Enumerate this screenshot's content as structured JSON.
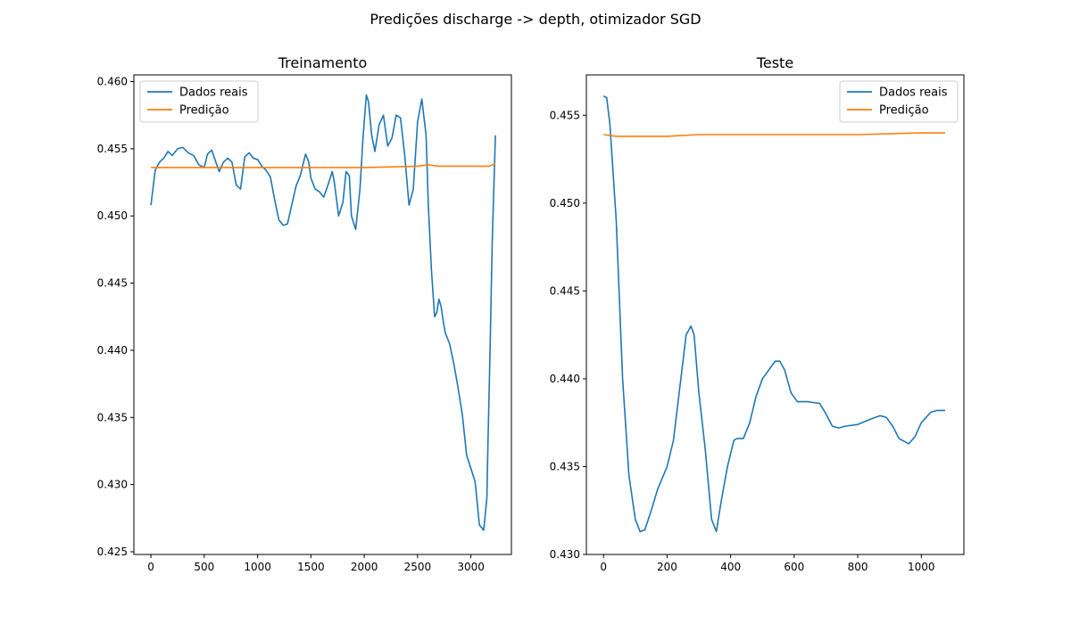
{
  "suptitle": "Predições discharge -> depth, otimizador SGD",
  "colors": {
    "real": "#1f77b4",
    "pred": "#ff7f0e"
  },
  "chart_data": [
    {
      "type": "line",
      "title": "Treinamento",
      "xlabel": "",
      "ylabel": "",
      "xlim": [
        -160,
        3380
      ],
      "ylim": [
        0.4248,
        0.4605
      ],
      "xticks": [
        0,
        500,
        1000,
        1500,
        2000,
        2500,
        3000
      ],
      "yticks": [
        0.425,
        0.43,
        0.435,
        0.44,
        0.445,
        0.45,
        0.455,
        0.46
      ],
      "legend": {
        "position": "top-left",
        "entries": [
          "Dados reais",
          "Predição"
        ]
      },
      "grid": false,
      "series": [
        {
          "name": "Dados reais",
          "x": [
            0,
            40,
            80,
            120,
            160,
            200,
            250,
            300,
            350,
            400,
            450,
            500,
            530,
            570,
            600,
            640,
            680,
            720,
            760,
            800,
            840,
            880,
            920,
            960,
            1000,
            1040,
            1080,
            1120,
            1160,
            1200,
            1240,
            1280,
            1320,
            1360,
            1400,
            1450,
            1480,
            1500,
            1540,
            1580,
            1620,
            1660,
            1700,
            1720,
            1760,
            1800,
            1830,
            1860,
            1880,
            1920,
            1960,
            1990,
            2020,
            2040,
            2070,
            2100,
            2140,
            2180,
            2220,
            2260,
            2300,
            2340,
            2380,
            2420,
            2460,
            2500,
            2540,
            2580,
            2600,
            2630,
            2660,
            2680,
            2700,
            2720,
            2740,
            2760,
            2800,
            2840,
            2880,
            2920,
            2960,
            3000,
            3040,
            3080,
            3120,
            3150,
            3160,
            3180,
            3200,
            3230
          ],
          "y": [
            0.4508,
            0.4534,
            0.454,
            0.4543,
            0.4548,
            0.4545,
            0.455,
            0.4551,
            0.4547,
            0.4545,
            0.4538,
            0.4536,
            0.4546,
            0.4549,
            0.4542,
            0.4533,
            0.454,
            0.4543,
            0.454,
            0.4523,
            0.452,
            0.4544,
            0.4547,
            0.4543,
            0.4542,
            0.4537,
            0.4534,
            0.4529,
            0.4512,
            0.4497,
            0.4493,
            0.4494,
            0.4508,
            0.4522,
            0.453,
            0.4546,
            0.454,
            0.4528,
            0.452,
            0.4518,
            0.4514,
            0.4523,
            0.4533,
            0.4525,
            0.45,
            0.451,
            0.4533,
            0.453,
            0.45,
            0.449,
            0.452,
            0.456,
            0.459,
            0.4585,
            0.456,
            0.4548,
            0.4568,
            0.4575,
            0.4552,
            0.4558,
            0.4575,
            0.4573,
            0.4545,
            0.4508,
            0.452,
            0.457,
            0.4587,
            0.456,
            0.451,
            0.446,
            0.4425,
            0.4428,
            0.4438,
            0.4433,
            0.4422,
            0.4413,
            0.4405,
            0.439,
            0.4372,
            0.4352,
            0.4322,
            0.4312,
            0.4302,
            0.427,
            0.4266,
            0.429,
            0.433,
            0.44,
            0.448,
            0.456
          ]
        },
        {
          "name": "Predição",
          "x": [
            0,
            500,
            1000,
            1500,
            2000,
            2500,
            2600,
            2700,
            3100,
            3170,
            3230
          ],
          "y": [
            0.4536,
            0.4536,
            0.4536,
            0.4536,
            0.4536,
            0.4537,
            0.4538,
            0.4537,
            0.4537,
            0.4537,
            0.4539
          ]
        }
      ]
    },
    {
      "type": "line",
      "title": "Teste",
      "xlabel": "",
      "ylabel": "",
      "xlim": [
        -54,
        1134
      ],
      "ylim": [
        0.43,
        0.4573
      ],
      "xticks": [
        0,
        200,
        400,
        600,
        800,
        1000
      ],
      "yticks": [
        0.43,
        0.435,
        0.44,
        0.445,
        0.45,
        0.455
      ],
      "legend": {
        "position": "top-right",
        "entries": [
          "Dados reais",
          "Predição"
        ]
      },
      "grid": false,
      "series": [
        {
          "name": "Dados reais",
          "x": [
            0,
            10,
            20,
            40,
            60,
            80,
            100,
            115,
            130,
            150,
            170,
            200,
            220,
            240,
            260,
            275,
            285,
            300,
            320,
            340,
            355,
            370,
            390,
            410,
            420,
            440,
            460,
            480,
            500,
            520,
            540,
            555,
            570,
            590,
            610,
            640,
            680,
            700,
            720,
            740,
            760,
            800,
            840,
            870,
            890,
            910,
            930,
            960,
            980,
            1000,
            1030,
            1050,
            1075
          ],
          "y": [
            0.4561,
            0.456,
            0.4545,
            0.449,
            0.44,
            0.4345,
            0.432,
            0.4313,
            0.4314,
            0.4325,
            0.4337,
            0.435,
            0.4365,
            0.4395,
            0.4425,
            0.443,
            0.4425,
            0.4392,
            0.436,
            0.432,
            0.4313,
            0.433,
            0.435,
            0.4365,
            0.4366,
            0.4366,
            0.4375,
            0.439,
            0.44,
            0.4405,
            0.441,
            0.441,
            0.4405,
            0.4392,
            0.4387,
            0.4387,
            0.4386,
            0.438,
            0.4373,
            0.4372,
            0.4373,
            0.4374,
            0.4377,
            0.4379,
            0.4378,
            0.4373,
            0.4366,
            0.4363,
            0.4367,
            0.4375,
            0.4381,
            0.4382,
            0.4382
          ]
        },
        {
          "name": "Predição",
          "x": [
            0,
            40,
            80,
            120,
            200,
            300,
            400,
            600,
            800,
            1000,
            1075
          ],
          "y": [
            0.4539,
            0.4538,
            0.4538,
            0.4538,
            0.4538,
            0.4539,
            0.4539,
            0.4539,
            0.4539,
            0.454,
            0.454
          ]
        }
      ]
    }
  ]
}
